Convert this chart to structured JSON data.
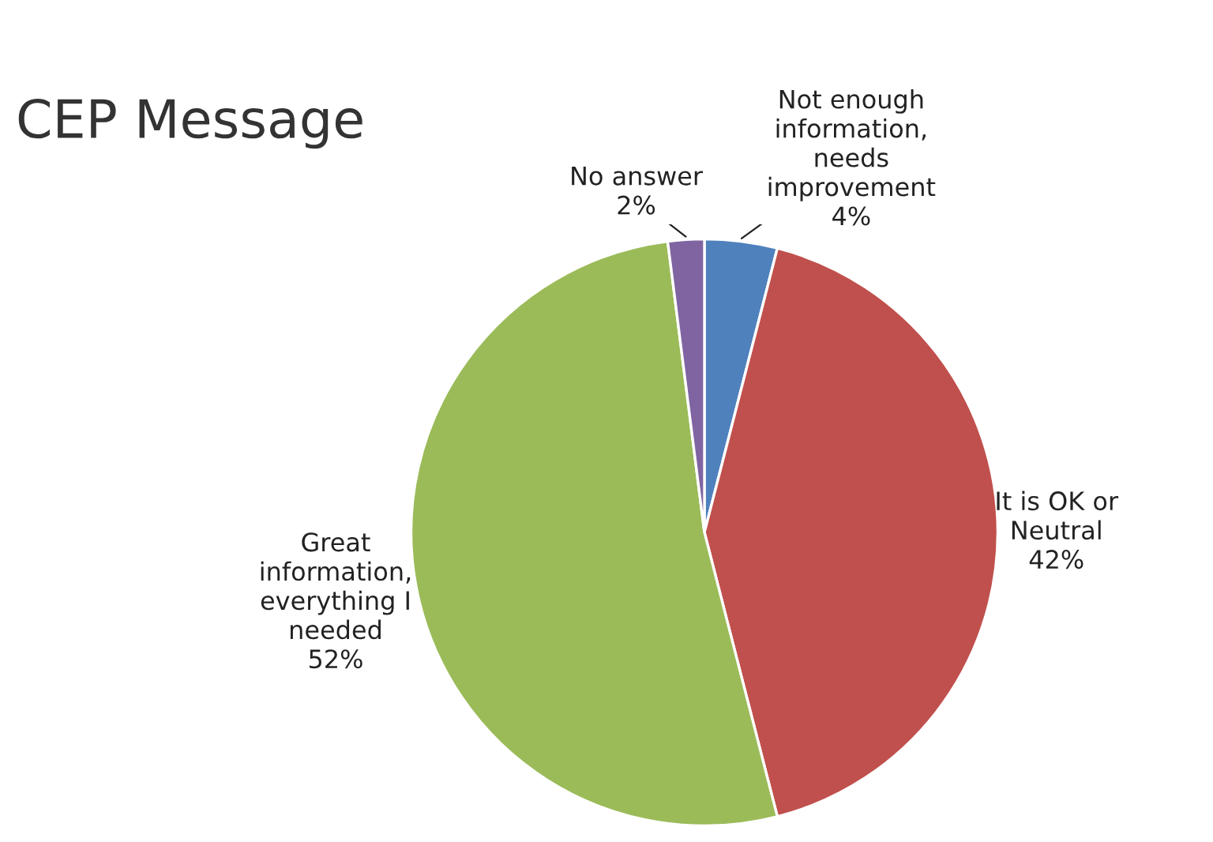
{
  "chart_data": {
    "type": "pie",
    "title": "CEP Message",
    "categories": [
      "Not enough\ninformation,\nneeds\nimprovement",
      "It is OK or\nNeutral",
      "Great\ninformation,\neverything I\nneeded",
      "No answer"
    ],
    "values": [
      4,
      42,
      52,
      2
    ],
    "colors": [
      "#4f81bd",
      "#c0504d",
      "#9bbb59",
      "#8064a2"
    ],
    "value_labels": [
      "4%",
      "42%",
      "52%",
      "2%"
    ]
  }
}
